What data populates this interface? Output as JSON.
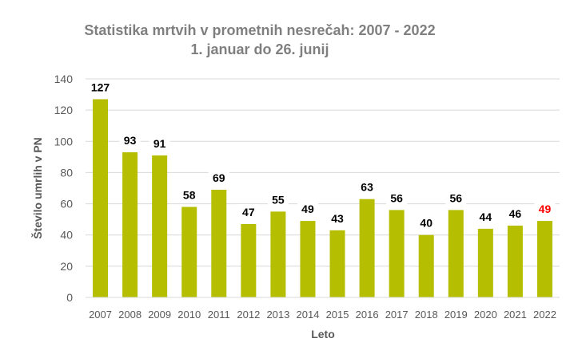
{
  "chart_data": {
    "type": "bar",
    "title": "Statistika mrtvih v prometnih nesrečah: 2007 - 2022",
    "subtitle": "1. januar do 26. junij",
    "xlabel": "Leto",
    "ylabel": "Število umrlih v PN",
    "ylim": [
      0,
      140
    ],
    "yticks": [
      0,
      20,
      40,
      60,
      80,
      100,
      120,
      140
    ],
    "grid": true,
    "categories": [
      "2007",
      "2008",
      "2009",
      "2010",
      "2011",
      "2012",
      "2013",
      "2014",
      "2015",
      "2016",
      "2017",
      "2018",
      "2019",
      "2020",
      "2021",
      "2022"
    ],
    "values": [
      127,
      93,
      91,
      58,
      69,
      47,
      55,
      49,
      43,
      63,
      56,
      40,
      56,
      44,
      46,
      49
    ],
    "bar_color": "#b5be00",
    "label_color": "#000000",
    "highlight_label_color": "#ff0000",
    "highlight_category": "2022"
  }
}
